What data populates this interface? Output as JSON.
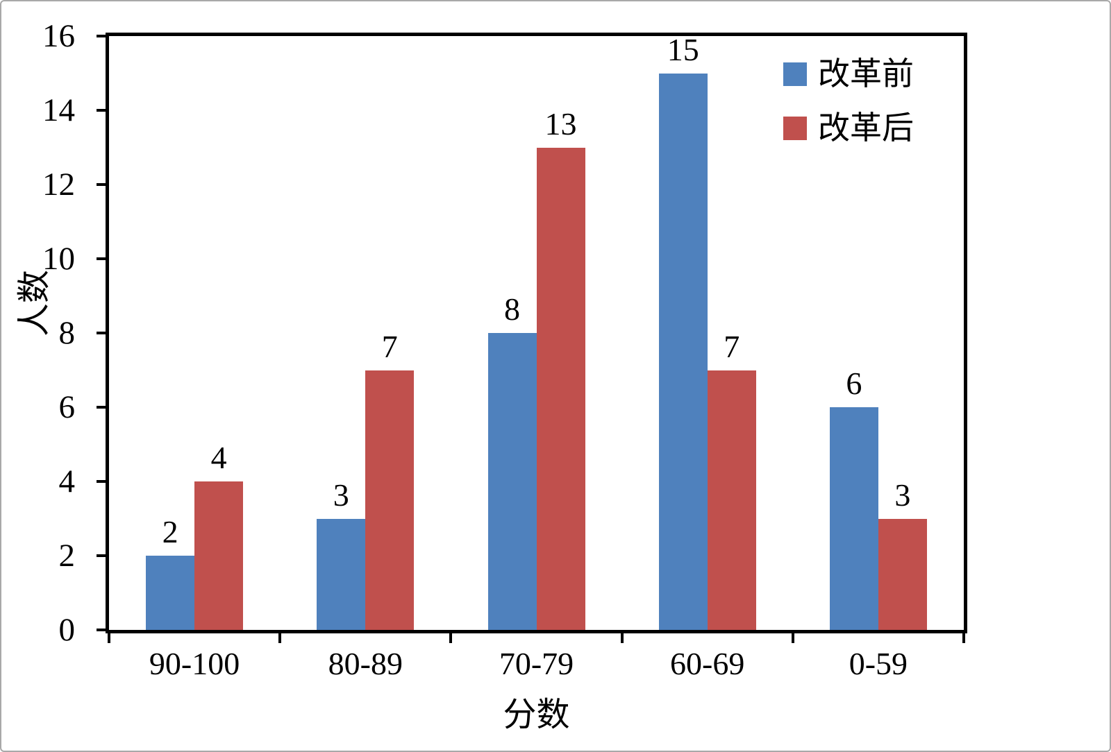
{
  "chart_data": {
    "type": "bar",
    "categories": [
      "90-100",
      "80-89",
      "70-79",
      "60-69",
      "0-59"
    ],
    "series": [
      {
        "name": "改革前",
        "color": "#4f81bd",
        "values": [
          2,
          3,
          8,
          15,
          6
        ]
      },
      {
        "name": "改革后",
        "color": "#c0504d",
        "values": [
          4,
          7,
          13,
          7,
          3
        ]
      }
    ],
    "title": "",
    "xlabel": "分数",
    "ylabel": "人数",
    "ylim": [
      0,
      16
    ],
    "ytick_step": 2,
    "y_tick_labels": [
      "0",
      "2",
      "4",
      "6",
      "8",
      "10",
      "12",
      "14",
      "16"
    ],
    "grid": false,
    "legend_position": "top-right",
    "data_labels": true,
    "bar_label_values_series1": [
      2,
      3,
      8,
      15,
      6
    ],
    "bar_label_values_series2": [
      4,
      7,
      13,
      7,
      3
    ]
  }
}
